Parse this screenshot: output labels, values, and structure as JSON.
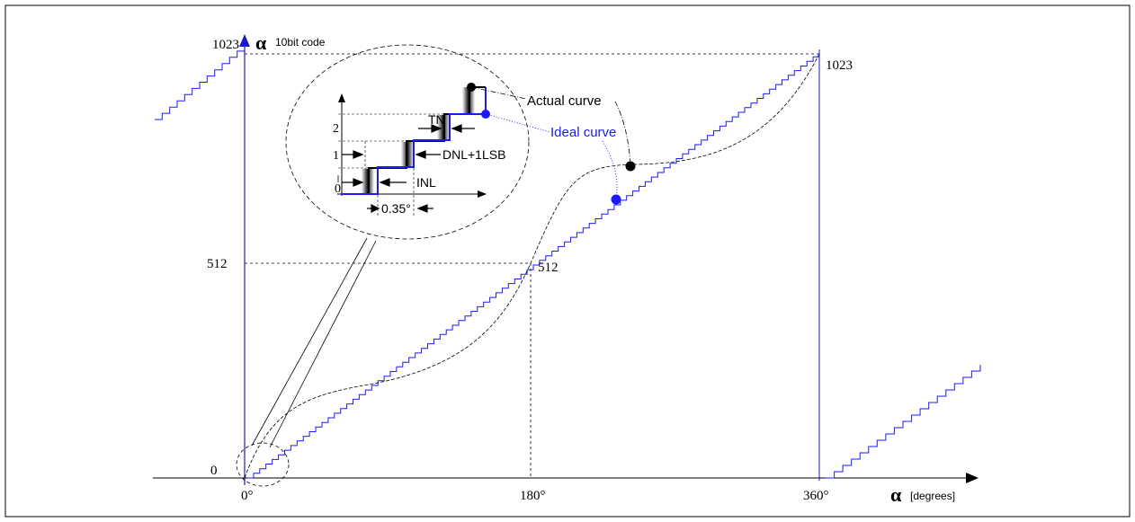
{
  "y_axis": {
    "symbol": "α",
    "caption": "10bit code",
    "ticks": [
      "1023",
      "512",
      "0"
    ]
  },
  "x_axis": {
    "symbol": "α",
    "caption": "[degrees]",
    "ticks": [
      "0°",
      "180°",
      "360°"
    ]
  },
  "point_labels": {
    "top_right": "1023",
    "mid": "512"
  },
  "curves": {
    "actual": "Actual curve",
    "ideal": "Ideal curve"
  },
  "inset": {
    "y_ticks": [
      "2",
      "1",
      "0"
    ],
    "labels": {
      "tn": "TN",
      "dnl": "DNL+1LSB",
      "inl": "INL",
      "step_width": "0.35°"
    }
  },
  "colors": {
    "ideal": "#1a1aff",
    "actual": "#000000",
    "axis_blue": "#1a1acc"
  }
}
